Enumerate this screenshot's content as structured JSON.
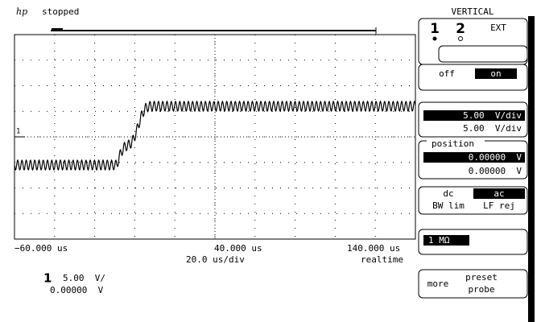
{
  "header": {
    "logo": "hp",
    "status": "stopped"
  },
  "time_axis": {
    "left": "−60.000 us",
    "center": "40.000 us",
    "right": "140.000 us",
    "timebase": "20.0 us/div",
    "mode": "realtime"
  },
  "ground_marker": "1",
  "channel_info": {
    "channel": "1",
    "scale": "5.00  V/",
    "offset": "0.00000  V"
  },
  "menu": {
    "title": "VERTICAL",
    "channels": [
      "1",
      "2",
      "EXT"
    ],
    "off": "off",
    "on": "on",
    "vdiv_input": "5.00  V/div",
    "vdiv_value": "5.00  V/div",
    "position_label": "position",
    "position_input": "0.00000  V",
    "position_value": "0.00000  V",
    "dc": "dc",
    "ac": "ac",
    "bw_lim": "BW lim",
    "lf_rej": "LF rej",
    "impedance": "1 MΩ",
    "more": "more",
    "preset": "preset",
    "probe": "probe"
  }
}
